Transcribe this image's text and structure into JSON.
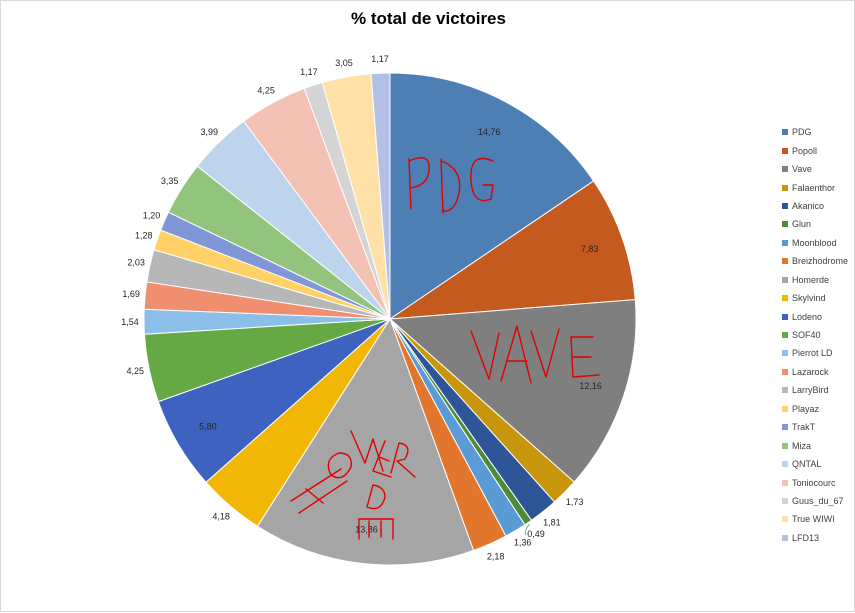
{
  "chart_data": {
    "type": "pie",
    "title": "% total de victoires",
    "legend_position": "right",
    "slices": [
      {
        "label": "PDG",
        "value": 14.76,
        "display": "14,76",
        "color": "#4472c4"
      },
      {
        "label": "Popoll",
        "value": 7.83,
        "display": "7,83",
        "color": "#c55a11"
      },
      {
        "label": "Vave",
        "value": 12.16,
        "display": "12,16",
        "color": "#7f7f7f"
      },
      {
        "label": "Falaenthor",
        "value": 1.73,
        "display": "1,73",
        "color": "#bf9000"
      },
      {
        "label": "Akanico",
        "value": 1.81,
        "display": "1,81",
        "color": "#2f5597"
      },
      {
        "label": "Glun",
        "value": 0.49,
        "display": "0,49",
        "color": "#548235"
      },
      {
        "label": "Moonblood",
        "value": 1.36,
        "display": "1,36",
        "color": "#5b9bd5"
      },
      {
        "label": "Breizhodrome",
        "value": 2.18,
        "display": "2,18",
        "color": "#ed7d31"
      },
      {
        "label": "Homerde",
        "value": 13.86,
        "display": "13,86",
        "color": "#a5a5a5"
      },
      {
        "label": "Skylvind",
        "value": 4.18,
        "display": "4,18",
        "color": "#ffc000"
      },
      {
        "label": "Lodeno",
        "value": 5.8,
        "display": "5,80",
        "color": "#4472c4"
      },
      {
        "label": "SOF40",
        "value": 4.25,
        "display": "4,25",
        "color": "#70ad47"
      },
      {
        "label": "Pierrot LD",
        "value": 1.54,
        "display": "1,54",
        "color": "#9dc3e6"
      },
      {
        "label": "Lazarock",
        "value": 1.69,
        "display": "1,69",
        "color": "#f4b183"
      },
      {
        "label": "LarryBird",
        "value": 2.03,
        "display": "2,03",
        "color": "#c9c9c9"
      },
      {
        "label": "Playaz",
        "value": 1.28,
        "display": "1,28",
        "color": "#ffd966"
      },
      {
        "label": "TrakT",
        "value": 1.2,
        "display": "1,20",
        "color": "#8faadc"
      },
      {
        "label": "Miza",
        "value": 3.35,
        "display": "3,35",
        "color": "#a9d18e"
      },
      {
        "label": "QNTAL",
        "value": 3.99,
        "display": "3,99",
        "color": "#bdd7ee"
      },
      {
        "label": "Toniocourc",
        "value": 4.25,
        "display": "4,25",
        "color": "#f8cbad"
      },
      {
        "label": "Guus_du_67",
        "value": 1.17,
        "display": "1,17",
        "color": "#d9d9d9"
      },
      {
        "label": "True WIWI",
        "value": 3.05,
        "display": "3,05",
        "color": "#ffe699"
      },
      {
        "label": "LFD13",
        "value": 1.17,
        "display": "1,17",
        "color": "#b4c7e7"
      }
    ],
    "colors": {
      "PDG": "#4e7fb4",
      "Popoll": "#c55a1e",
      "Vave": "#7f7f7f",
      "Falaenthor": "#c8960c",
      "Akanico": "#2e5597",
      "Glun": "#4e8a3a",
      "Moonblood": "#5b9bd5",
      "Breizhodrome": "#e2762c",
      "Homerde": "#a5a5a5",
      "Skylvind": "#f2b705",
      "Lodeno": "#3d62c0",
      "SOF40": "#65a844",
      "Pierrot LD": "#8bbee8",
      "Lazarock": "#ef8f6f",
      "LarryBird": "#b7b7b7",
      "Playaz": "#ffd166",
      "TrakT": "#8196d6",
      "Miza": "#93c47d",
      "QNTAL": "#bcd4ec",
      "Toniocourc": "#f4c2b4",
      "Guus_du_67": "#d4d4d4",
      "True WIWI": "#ffe0a6",
      "LFD13": "#b4bfe6"
    }
  }
}
